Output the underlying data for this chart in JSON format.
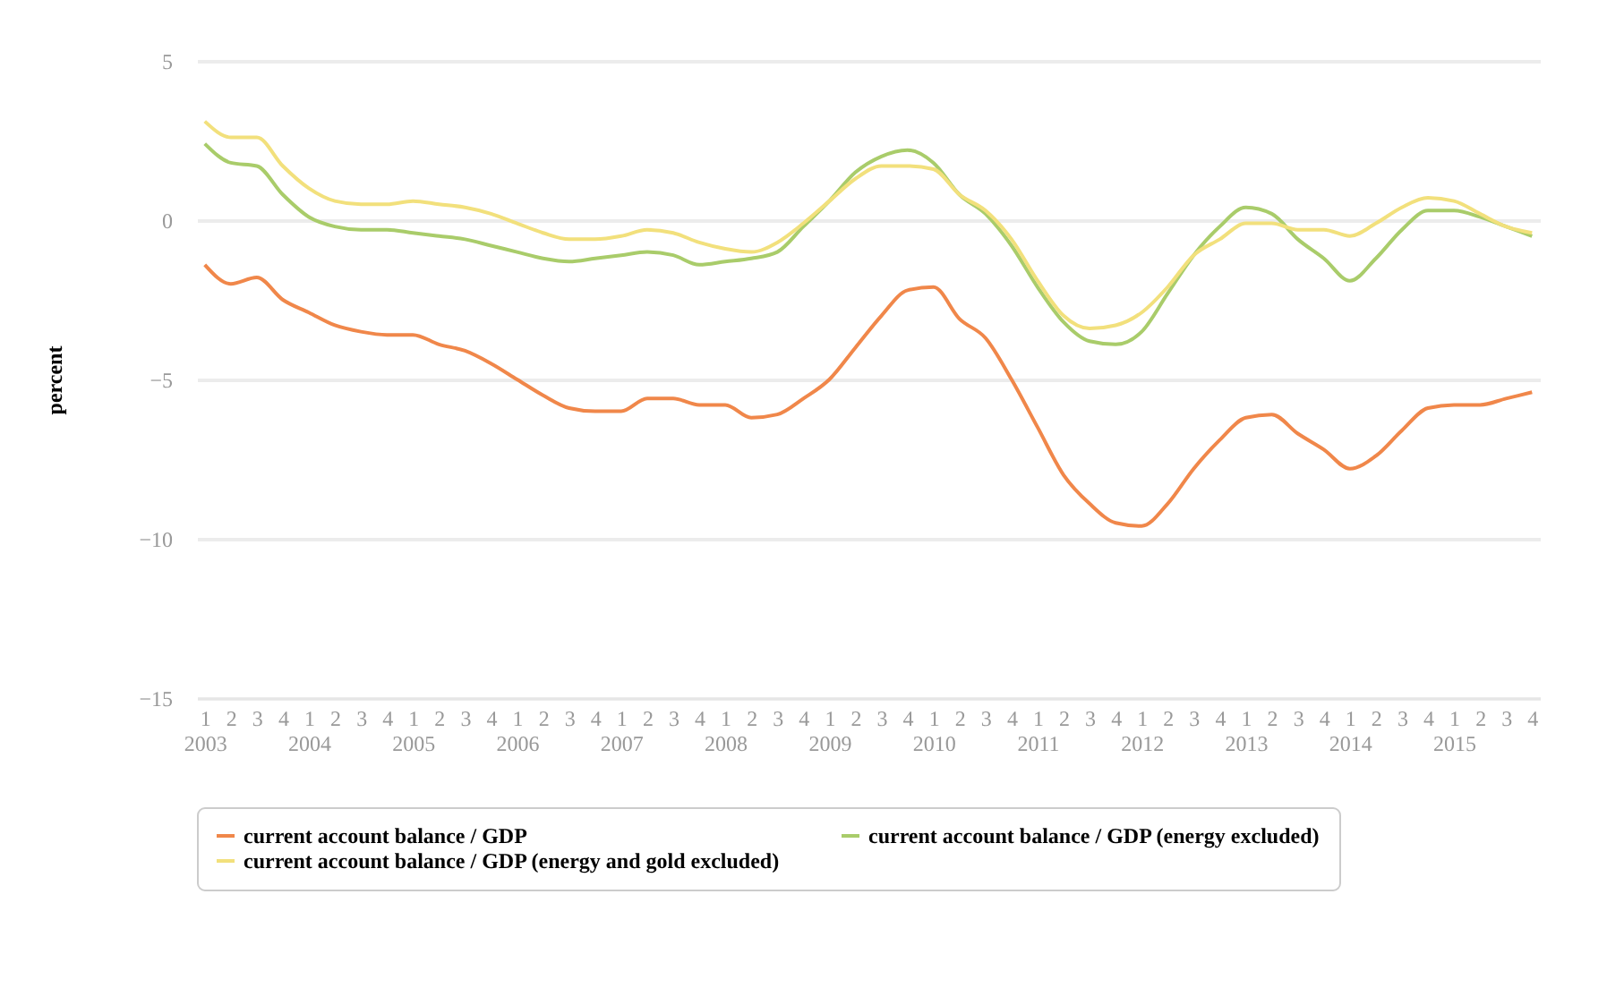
{
  "chart_data": {
    "type": "line",
    "ylabel": "percent",
    "categories": [
      "1\n2003",
      "2",
      "3",
      "4",
      "1\n2004",
      "2",
      "3",
      "4",
      "1\n2005",
      "2",
      "3",
      "4",
      "1\n2006",
      "2",
      "3",
      "4",
      "1\n2007",
      "2",
      "3",
      "4",
      "1\n2008",
      "2",
      "3",
      "4",
      "1\n2009",
      "2",
      "3",
      "4",
      "1\n2010",
      "2",
      "3",
      "4",
      "1\n2011",
      "2",
      "3",
      "4",
      "1\n2012",
      "2",
      "3",
      "4",
      "1\n2013",
      "2",
      "3",
      "4",
      "1\n2014",
      "2",
      "3",
      "4",
      "1\n2015",
      "2",
      "3",
      "4"
    ],
    "series": [
      {
        "name": "current account balance / GDP",
        "color": "#f0874a",
        "values": [
          -1.4,
          -2.0,
          -1.8,
          -2.5,
          -2.9,
          -3.3,
          -3.5,
          -3.6,
          -3.6,
          -3.9,
          -4.1,
          -4.5,
          -5.0,
          -5.5,
          -5.9,
          -6.0,
          -6.0,
          -5.6,
          -5.6,
          -5.8,
          -5.8,
          -6.2,
          -6.1,
          -5.6,
          -5.0,
          -4.0,
          -3.0,
          -2.2,
          -2.1,
          -3.1,
          -3.7,
          -5.0,
          -6.5,
          -8.0,
          -8.9,
          -9.5,
          -9.6,
          -8.9,
          -7.8,
          -6.9,
          -6.2,
          -6.1,
          -6.7,
          -7.2,
          -7.8,
          -7.4,
          -6.6,
          -5.9,
          -5.8,
          -5.8,
          -5.6,
          -5.4
        ]
      },
      {
        "name": "current account balance / GDP (energy excluded)",
        "color": "#a9cc6a",
        "values": [
          2.4,
          1.8,
          1.7,
          0.8,
          0.1,
          -0.2,
          -0.3,
          -0.3,
          -0.4,
          -0.5,
          -0.6,
          -0.8,
          -1.0,
          -1.2,
          -1.3,
          -1.2,
          -1.1,
          -1.0,
          -1.1,
          -1.4,
          -1.3,
          -1.2,
          -1.0,
          -0.2,
          0.6,
          1.5,
          2.0,
          2.2,
          1.8,
          0.8,
          0.2,
          -0.8,
          -2.1,
          -3.2,
          -3.8,
          -3.9,
          -3.5,
          -2.3,
          -1.1,
          -0.2,
          0.4,
          0.2,
          -0.6,
          -1.2,
          -1.9,
          -1.2,
          -0.3,
          0.3,
          0.3,
          0.1,
          -0.2,
          -0.5
        ]
      },
      {
        "name": "current account balance / GDP (energy and gold excluded)",
        "color": "#f2e07c",
        "values": [
          3.1,
          2.6,
          2.6,
          1.7,
          1.0,
          0.6,
          0.5,
          0.5,
          0.6,
          0.5,
          0.4,
          0.2,
          -0.1,
          -0.4,
          -0.6,
          -0.6,
          -0.5,
          -0.3,
          -0.4,
          -0.7,
          -0.9,
          -1.0,
          -0.7,
          -0.1,
          0.6,
          1.3,
          1.7,
          1.7,
          1.6,
          0.8,
          0.3,
          -0.6,
          -1.9,
          -3.0,
          -3.4,
          -3.3,
          -2.9,
          -2.1,
          -1.1,
          -0.6,
          -0.1,
          -0.1,
          -0.3,
          -0.3,
          -0.5,
          -0.1,
          0.4,
          0.7,
          0.6,
          0.2,
          -0.2,
          -0.4
        ]
      }
    ],
    "ylim": [
      -15,
      5
    ],
    "yticks": [
      -15,
      -10,
      -5,
      0,
      5
    ],
    "grid": "y",
    "legend": "bottom"
  }
}
